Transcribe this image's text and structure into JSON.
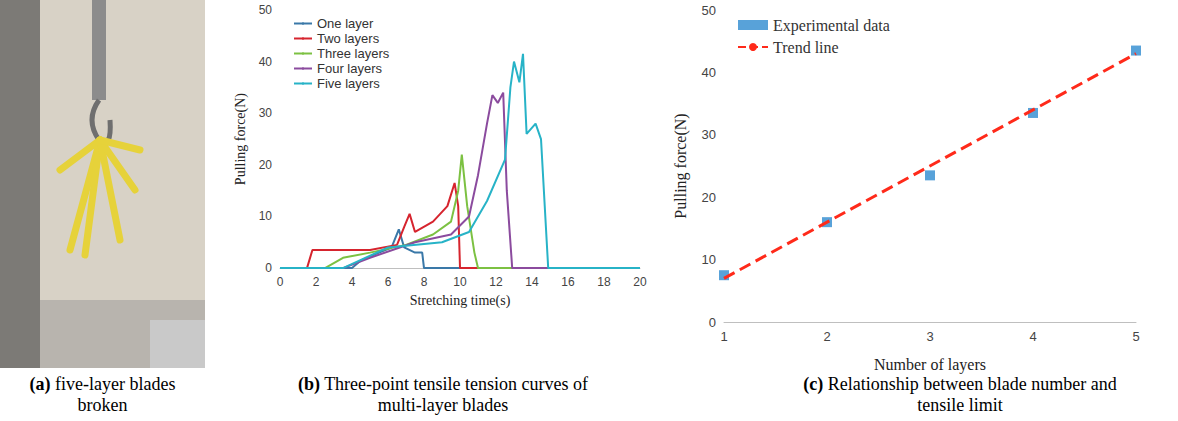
{
  "photo": {
    "caption": {
      "label": "(a)",
      "text": "five-layer blades broken"
    }
  },
  "chart_data": [
    {
      "type": "line",
      "caption": {
        "label": "(b)",
        "text": "Three-point tensile tension curves of multi-layer blades"
      },
      "x_label": "Stretching time(s)",
      "y_label": "Pulling force(N)",
      "xlim": [
        0,
        20
      ],
      "xticks": [
        0,
        2,
        4,
        6,
        8,
        10,
        12,
        14,
        16,
        18,
        20
      ],
      "ylim": [
        0,
        50
      ],
      "yticks": [
        0,
        10,
        20,
        30,
        40,
        50
      ],
      "grid": false,
      "legend": "top-left",
      "series": [
        {
          "name": "One layer",
          "color": "#3a78a8",
          "x": [
            0,
            4,
            4.5,
            5.5,
            6.2,
            6.6,
            6.9,
            7.5,
            7.9,
            8,
            20
          ],
          "values": [
            0,
            0,
            1.5,
            3,
            4,
            7.5,
            4,
            3,
            3,
            0,
            0
          ]
        },
        {
          "name": "Two layers",
          "color": "#d6242e",
          "x": [
            0,
            1.5,
            1.8,
            5,
            6.5,
            6.9,
            7.2,
            7.5,
            8.5,
            9.3,
            9.7,
            9.9,
            10,
            20
          ],
          "values": [
            0,
            0,
            3.5,
            3.5,
            4.5,
            8,
            10.5,
            7,
            9,
            12,
            16.5,
            12,
            0,
            0
          ]
        },
        {
          "name": "Three layers",
          "color": "#7cc142",
          "x": [
            0,
            2.5,
            3.5,
            5,
            7,
            8.5,
            9.5,
            9.9,
            10.1,
            10.4,
            10.8,
            11,
            20
          ],
          "values": [
            0,
            0,
            2,
            3,
            4.5,
            6.5,
            9,
            15,
            22,
            12,
            3,
            0,
            0
          ]
        },
        {
          "name": "Four layers",
          "color": "#8b4b9e",
          "x": [
            0,
            3.5,
            5,
            7.5,
            9.5,
            10.5,
            11,
            11.5,
            11.8,
            12.1,
            12.4,
            12.6,
            12.9,
            20
          ],
          "values": [
            0,
            0,
            2,
            5,
            6.5,
            10,
            18,
            28,
            33.5,
            32,
            34,
            15,
            0,
            0
          ]
        },
        {
          "name": "Five layers",
          "color": "#27b3c7",
          "x": [
            0,
            3.5,
            6,
            9,
            10.5,
            11.5,
            12.5,
            12.8,
            13,
            13.3,
            13.5,
            13.7,
            14.2,
            14.5,
            14.9,
            20
          ],
          "values": [
            0,
            0,
            4,
            5,
            7,
            13,
            21,
            35,
            40,
            36,
            41.5,
            26,
            28,
            25,
            0,
            0
          ]
        }
      ]
    },
    {
      "type": "scatter",
      "caption": {
        "label": "(c)",
        "text": "Relationship between blade number and tensile limit"
      },
      "x_label": "Number of layers",
      "y_label": "Pulling force(N)",
      "xlim": [
        1,
        5
      ],
      "xticks": [
        1,
        2,
        3,
        4,
        5
      ],
      "ylim": [
        0,
        50
      ],
      "yticks": [
        0,
        10,
        20,
        30,
        40,
        50
      ],
      "grid": false,
      "legend": "top-left",
      "series": [
        {
          "name": "Experimental data",
          "type": "scatter",
          "marker": "square",
          "color": "#2e8bd0",
          "x": [
            1,
            2,
            3,
            4,
            5
          ],
          "values": [
            7.5,
            16,
            23.5,
            33.5,
            43.5
          ]
        },
        {
          "name": "Trend line",
          "type": "line",
          "line_style": "dashed",
          "color": "#ff2a1a",
          "x": [
            1,
            5
          ],
          "values": [
            7,
            43
          ]
        }
      ]
    }
  ]
}
